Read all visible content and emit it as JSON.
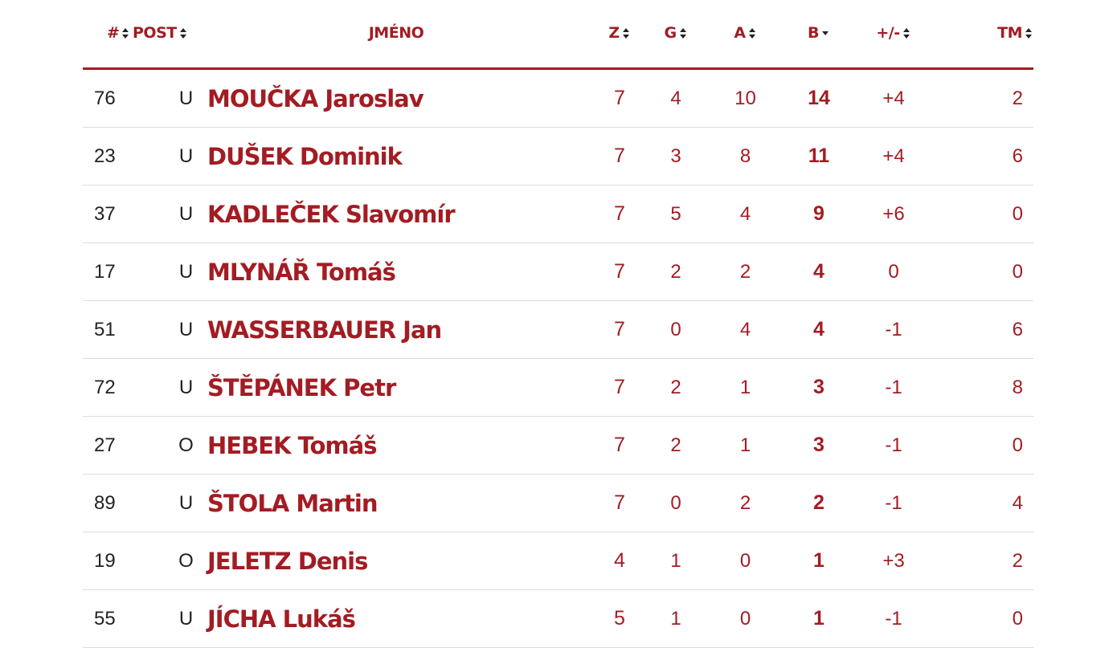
{
  "table": {
    "columns": {
      "num": "#",
      "pos": "POST",
      "name": "JMÉNO",
      "z": "Z",
      "g": "G",
      "a": "A",
      "b": "B",
      "pm": "+/-",
      "tm": "TM"
    },
    "sorted_by": "B",
    "sort_direction": "descending",
    "colors": {
      "accent": "#a31c23",
      "text": "#222222",
      "divider": "#dcdcdc"
    },
    "rows": [
      {
        "num": "76",
        "pos": "U",
        "name": "MOUČKA Jaroslav",
        "z": "7",
        "g": "4",
        "a": "10",
        "b": "14",
        "pm": "+4",
        "tm": "2"
      },
      {
        "num": "23",
        "pos": "U",
        "name": "DUŠEK Dominik",
        "z": "7",
        "g": "3",
        "a": "8",
        "b": "11",
        "pm": "+4",
        "tm": "6"
      },
      {
        "num": "37",
        "pos": "U",
        "name": "KADLEČEK Slavomír",
        "z": "7",
        "g": "5",
        "a": "4",
        "b": "9",
        "pm": "+6",
        "tm": "0"
      },
      {
        "num": "17",
        "pos": "U",
        "name": "MLYNÁŘ Tomáš",
        "z": "7",
        "g": "2",
        "a": "2",
        "b": "4",
        "pm": "0",
        "tm": "0"
      },
      {
        "num": "51",
        "pos": "U",
        "name": "WASSERBAUER Jan",
        "z": "7",
        "g": "0",
        "a": "4",
        "b": "4",
        "pm": "-1",
        "tm": "6"
      },
      {
        "num": "72",
        "pos": "U",
        "name": "ŠTĚPÁNEK Petr",
        "z": "7",
        "g": "2",
        "a": "1",
        "b": "3",
        "pm": "-1",
        "tm": "8"
      },
      {
        "num": "27",
        "pos": "O",
        "name": "HEBEK Tomáš",
        "z": "7",
        "g": "2",
        "a": "1",
        "b": "3",
        "pm": "-1",
        "tm": "0"
      },
      {
        "num": "89",
        "pos": "U",
        "name": "ŠTOLA Martin",
        "z": "7",
        "g": "0",
        "a": "2",
        "b": "2",
        "pm": "-1",
        "tm": "4"
      },
      {
        "num": "19",
        "pos": "O",
        "name": "JELETZ Denis",
        "z": "4",
        "g": "1",
        "a": "0",
        "b": "1",
        "pm": "+3",
        "tm": "2"
      },
      {
        "num": "55",
        "pos": "U",
        "name": "JÍCHA Lukáš",
        "z": "5",
        "g": "1",
        "a": "0",
        "b": "1",
        "pm": "-1",
        "tm": "0"
      }
    ]
  }
}
